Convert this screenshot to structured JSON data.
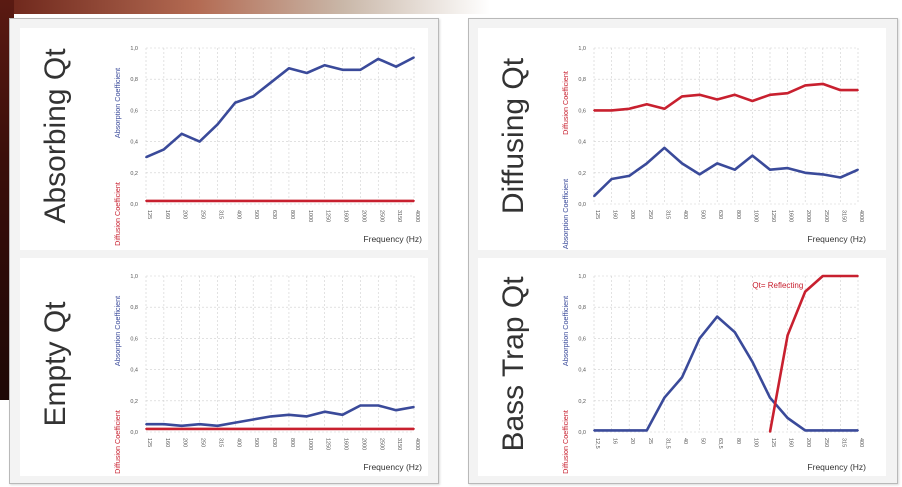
{
  "colors": {
    "blue": "#3a4a9a",
    "red": "#c8202f",
    "grid": "#cfcfcf",
    "frame": "#b9b9b9"
  },
  "chart_data": [
    {
      "type": "line",
      "title": "Absorbing Qt",
      "ylabel_top": "Absorption Coefficient",
      "ylabel_bottom": "Diffusion Coefficient",
      "xlabel": "Frequency (Hz)",
      "categories": [
        "125",
        "160",
        "200",
        "250",
        "315",
        "400",
        "500",
        "630",
        "800",
        "1000",
        "1250",
        "1600",
        "2000",
        "2500",
        "3150",
        "4000"
      ],
      "yticks": [
        "1,0",
        "0,8",
        "0,6",
        "0,4",
        "0,2",
        "0,0"
      ],
      "ylim": [
        0,
        1
      ],
      "grid": true,
      "series": [
        {
          "color": "blue",
          "values": [
            0.3,
            0.35,
            0.45,
            0.4,
            0.51,
            0.65,
            0.69,
            0.78,
            0.87,
            0.84,
            0.89,
            0.86,
            0.86,
            0.93,
            0.88,
            0.94
          ]
        },
        {
          "color": "red",
          "values": [
            0.02,
            0.02,
            0.02,
            0.02,
            0.02,
            0.02,
            0.02,
            0.02,
            0.02,
            0.02,
            0.02,
            0.02,
            0.02,
            0.02,
            0.02,
            0.02
          ]
        }
      ]
    },
    {
      "type": "line",
      "title": "Diffusing Qt",
      "ylabel_top": "Diffusion Coefficient",
      "ylabel_bottom": "Absorption Coefficient",
      "xlabel": "Frequency (Hz)",
      "categories": [
        "125",
        "160",
        "200",
        "250",
        "315",
        "400",
        "500",
        "630",
        "800",
        "1000",
        "1250",
        "1600",
        "2000",
        "2500",
        "3150",
        "4000"
      ],
      "yticks": [
        "1,0",
        "0,8",
        "0,6",
        "0,4",
        "0,2",
        "0,0"
      ],
      "ylim": [
        0,
        1
      ],
      "grid": true,
      "series": [
        {
          "color": "red",
          "values": [
            0.6,
            0.6,
            0.61,
            0.64,
            0.61,
            0.69,
            0.7,
            0.67,
            0.7,
            0.66,
            0.7,
            0.71,
            0.76,
            0.77,
            0.73,
            0.73
          ]
        },
        {
          "color": "blue",
          "values": [
            0.05,
            0.16,
            0.18,
            0.26,
            0.36,
            0.26,
            0.19,
            0.26,
            0.22,
            0.31,
            0.22,
            0.23,
            0.2,
            0.19,
            0.17,
            0.22
          ]
        }
      ]
    },
    {
      "type": "line",
      "title": "Empty Qt",
      "ylabel_top": "Absorption Coefficient",
      "ylabel_bottom": "Diffusion Coefficient",
      "xlabel": "Frequency (Hz)",
      "categories": [
        "125",
        "160",
        "200",
        "250",
        "315",
        "400",
        "500",
        "630",
        "800",
        "1000",
        "1250",
        "1600",
        "2000",
        "2500",
        "3150",
        "4000"
      ],
      "yticks": [
        "1,0",
        "0,8",
        "0,6",
        "0,4",
        "0,2",
        "0,0"
      ],
      "ylim": [
        0,
        1
      ],
      "grid": true,
      "series": [
        {
          "color": "blue",
          "values": [
            0.05,
            0.05,
            0.04,
            0.05,
            0.04,
            0.06,
            0.08,
            0.1,
            0.11,
            0.1,
            0.13,
            0.11,
            0.17,
            0.17,
            0.14,
            0.16
          ]
        },
        {
          "color": "red",
          "values": [
            0.02,
            0.02,
            0.02,
            0.02,
            0.02,
            0.02,
            0.02,
            0.02,
            0.02,
            0.02,
            0.02,
            0.02,
            0.02,
            0.02,
            0.02,
            0.02
          ]
        }
      ]
    },
    {
      "type": "line",
      "title": "Bass Trap Qt",
      "ylabel_top": "Absorption Coefficient",
      "ylabel_bottom": "Diffusion Coefficient",
      "xlabel": "Frequency (Hz)",
      "annotation": "Qt= Reflecting",
      "categories": [
        "12,5",
        "16",
        "20",
        "25",
        "31,5",
        "40",
        "50",
        "63,5",
        "80",
        "100",
        "125",
        "160",
        "200",
        "250",
        "315",
        "400"
      ],
      "yticks": [
        "1,0",
        "0,8",
        "0,6",
        "0,4",
        "0,2",
        "0,0"
      ],
      "ylim": [
        0,
        1
      ],
      "grid": true,
      "series": [
        {
          "color": "blue",
          "values": [
            0.01,
            0.01,
            0.01,
            0.01,
            0.22,
            0.35,
            0.6,
            0.74,
            0.64,
            0.45,
            0.22,
            0.09,
            0.01,
            0.01,
            0.01,
            0.01
          ]
        },
        {
          "color": "red",
          "values": [
            null,
            null,
            null,
            null,
            null,
            null,
            null,
            null,
            null,
            null,
            0.0,
            0.62,
            0.9,
            1.0,
            1.0,
            1.0
          ]
        }
      ]
    }
  ]
}
